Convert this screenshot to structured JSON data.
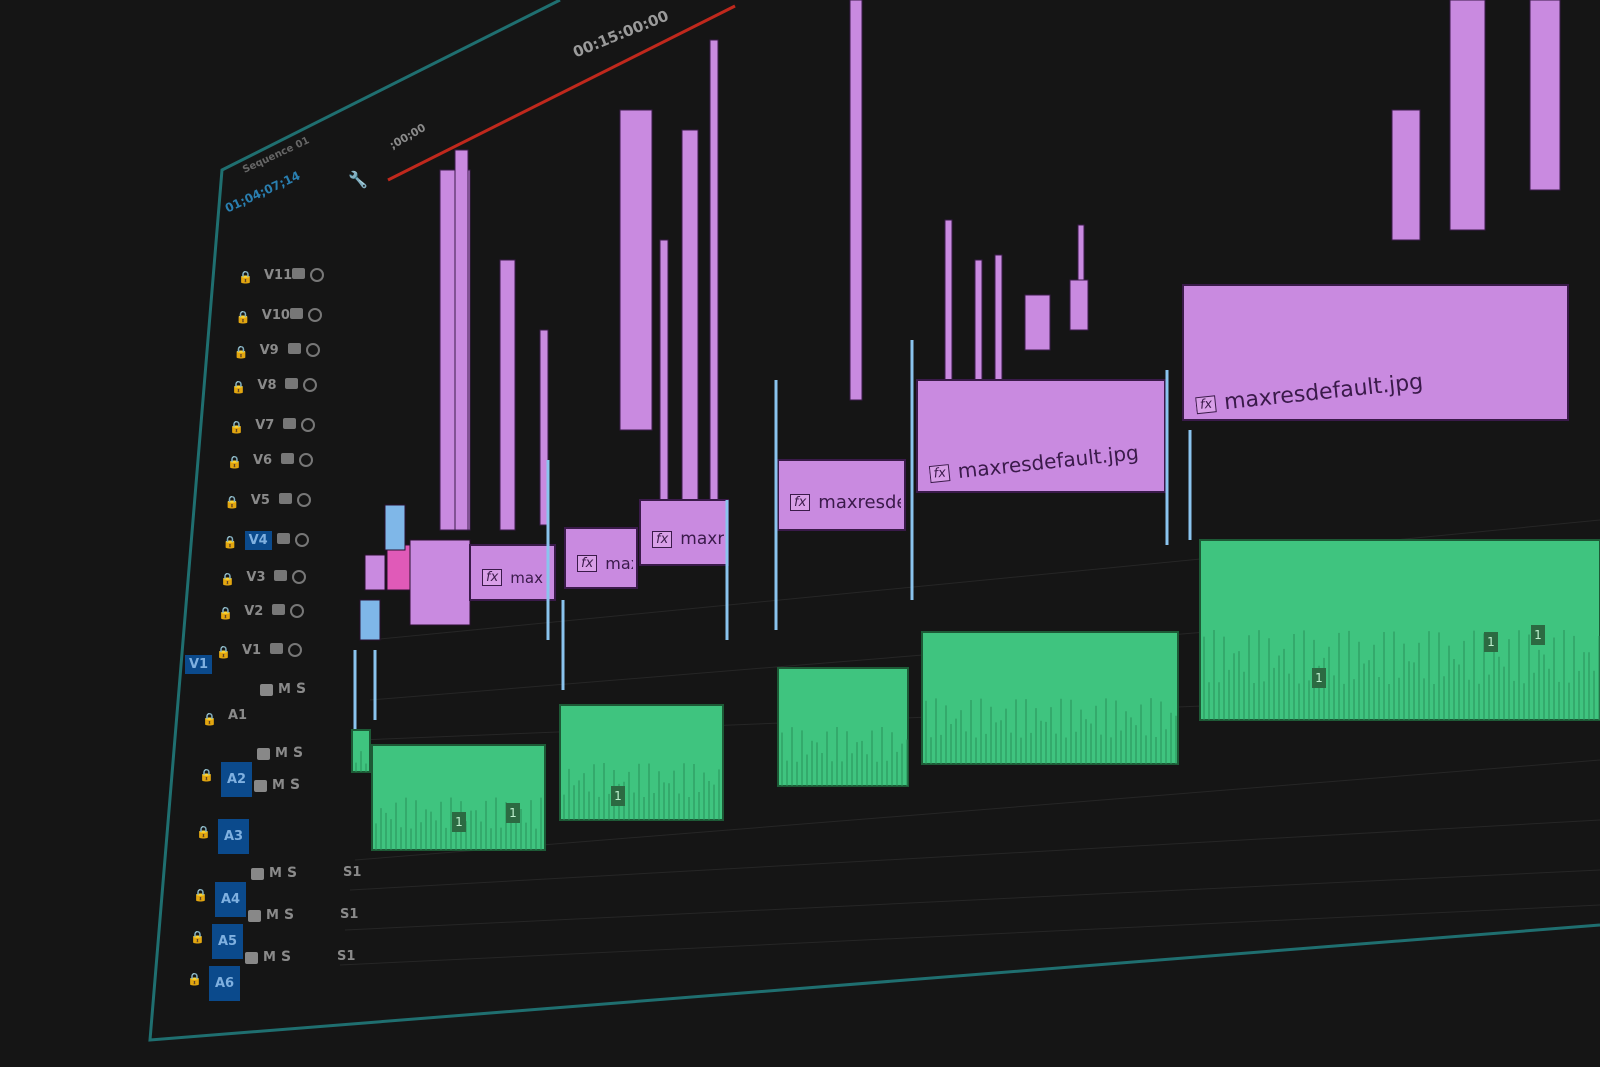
{
  "ruler": {
    "start_label": ";00;00",
    "marker_timecode": "00:15:00:00"
  },
  "sequence": {
    "tab_label": "Sequence 01",
    "timecode": "01;04;07;14"
  },
  "colors": {
    "video_clip": "#c98ae0",
    "video_clip_hot": "#e05ab8",
    "audio_clip": "#3fc47f",
    "panel_border": "#1f6f70",
    "work_area": "#c0281c",
    "track_selected": "#0b4a8c"
  },
  "video_tracks": [
    "V11",
    "V10",
    "V9",
    "V8",
    "V7",
    "V6",
    "V5",
    "V4",
    "V3",
    "V2",
    "V1"
  ],
  "selected_video_track": "V4",
  "source_patch": "V1",
  "audio_tracks": [
    {
      "name": "A1",
      "mute": "M",
      "solo": "S",
      "extra": ""
    },
    {
      "name": "A2",
      "mute": "M",
      "solo": "S",
      "extra": ""
    },
    {
      "name": "A3",
      "mute": "M",
      "solo": "S",
      "extra": ""
    },
    {
      "name": "A4",
      "mute": "M",
      "solo": "S",
      "extra": "S1"
    },
    {
      "name": "A5",
      "mute": "M",
      "solo": "S",
      "extra": "S1"
    },
    {
      "name": "A6",
      "mute": "M",
      "solo": "S",
      "extra": "S1"
    }
  ],
  "video_clips": [
    {
      "label": "max",
      "fx": "fx"
    },
    {
      "label": "maxi",
      "fx": "fx"
    },
    {
      "label": "maxre",
      "fx": "fx"
    },
    {
      "label": "maxresde",
      "fx": "fx"
    },
    {
      "label": "maxresdefault.jpg",
      "fx": "fx"
    },
    {
      "label": "maxresdefault.jpg",
      "fx": "fx"
    }
  ],
  "audio_badges": [
    "1",
    "1",
    "1",
    "1",
    "1",
    "1"
  ]
}
